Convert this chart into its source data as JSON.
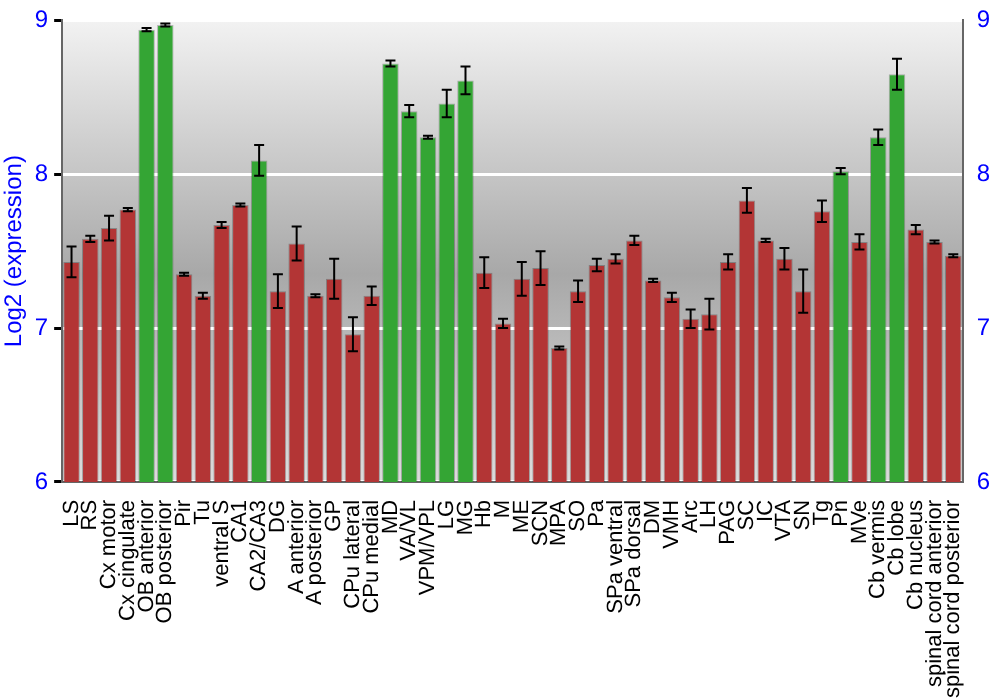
{
  "chart_data": {
    "type": "bar",
    "ylabel": "Log2 (expression)",
    "categories": [
      "LS",
      "RS",
      "Cx motor",
      "Cx cingulate",
      "OB anterior",
      "OB posterior",
      "Pir",
      "Tu",
      "ventral S",
      "CA1",
      "CA2/CA3",
      "DG",
      "A anterior",
      "A posterior",
      "GP",
      "CPu lateral",
      "CPu medial",
      "MD",
      "VA/VL",
      "VPM/VPL",
      "LG",
      "MG",
      "Hb",
      "M",
      "ME",
      "SCN",
      "MPA",
      "SO",
      "Pa",
      "SPa ventral",
      "SPa dorsal",
      "DM",
      "VMH",
      "Arc",
      "LH",
      "PAG",
      "SC",
      "IC",
      "VTA",
      "SN",
      "Tg",
      "Pn",
      "MVe",
      "Cb vermis",
      "Cb lobe",
      "Cb nucleus",
      "spinal cord anterior",
      "spinal cord posterior"
    ],
    "values": [
      7.43,
      7.58,
      7.65,
      7.77,
      8.94,
      8.97,
      7.35,
      7.21,
      7.67,
      7.8,
      8.09,
      7.24,
      7.55,
      7.21,
      7.32,
      6.96,
      7.21,
      8.72,
      8.41,
      8.24,
      8.46,
      8.61,
      7.36,
      7.03,
      7.32,
      7.39,
      6.87,
      7.24,
      7.41,
      7.45,
      7.57,
      7.31,
      7.2,
      7.06,
      7.09,
      7.43,
      7.83,
      7.57,
      7.45,
      7.24,
      7.76,
      8.02,
      7.56,
      8.24,
      8.65,
      7.64,
      7.56,
      7.47
    ],
    "errors": [
      0.1,
      0.02,
      0.08,
      0.01,
      0.01,
      0.01,
      0.01,
      0.02,
      0.02,
      0.01,
      0.1,
      0.11,
      0.11,
      0.01,
      0.13,
      0.11,
      0.06,
      0.02,
      0.04,
      0.01,
      0.09,
      0.09,
      0.1,
      0.03,
      0.11,
      0.11,
      0.01,
      0.07,
      0.04,
      0.03,
      0.03,
      0.01,
      0.03,
      0.06,
      0.1,
      0.05,
      0.08,
      0.01,
      0.07,
      0.14,
      0.07,
      0.02,
      0.05,
      0.05,
      0.1,
      0.03,
      0.01,
      0.01
    ],
    "colors": [
      "#b33535",
      "#b33535",
      "#b33535",
      "#b33535",
      "#34a534",
      "#34a534",
      "#b33535",
      "#b33535",
      "#b33535",
      "#b33535",
      "#34a534",
      "#b33535",
      "#b33535",
      "#b33535",
      "#b33535",
      "#b33535",
      "#b33535",
      "#34a534",
      "#34a534",
      "#34a534",
      "#34a534",
      "#34a534",
      "#b33535",
      "#b33535",
      "#b33535",
      "#b33535",
      "#b33535",
      "#b33535",
      "#b33535",
      "#b33535",
      "#b33535",
      "#b33535",
      "#b33535",
      "#b33535",
      "#b33535",
      "#b33535",
      "#b33535",
      "#b33535",
      "#b33535",
      "#b33535",
      "#b33535",
      "#34a534",
      "#b33535",
      "#34a534",
      "#34a534",
      "#b33535",
      "#b33535",
      "#b33535"
    ],
    "ylim": [
      6,
      9
    ],
    "yticks": [
      6,
      7,
      8,
      9
    ],
    "y2lim": [
      6,
      9
    ],
    "y2ticks": [
      6,
      7,
      8,
      9
    ],
    "grid": "y",
    "legend": false
  }
}
